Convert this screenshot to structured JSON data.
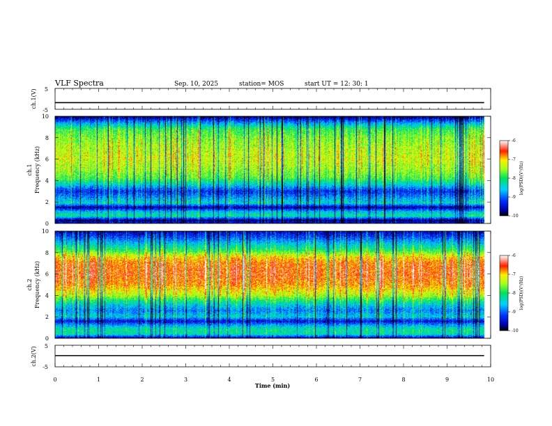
{
  "header": {
    "title": "VLF Spectra",
    "date": "Sep. 10, 2025",
    "station": "station= MOS",
    "start": "start  UT =   12: 30: 1"
  },
  "chart_data": [
    {
      "type": "line",
      "name": "ch1-voltage",
      "ylabel": "ch.1(V)",
      "ylim": [
        -5,
        5
      ],
      "yticks": [
        "5",
        "-5"
      ],
      "xlim": [
        0,
        10
      ],
      "series": [
        {
          "name": "ch.1",
          "constant_value": -1.8
        }
      ]
    },
    {
      "type": "heatmap",
      "name": "ch1-spectrogram",
      "ylabel": "ch.1\nFrequency (kHz)",
      "ylim": [
        0,
        10
      ],
      "yticks": [
        "0",
        "2",
        "4",
        "6",
        "8",
        "10"
      ],
      "xlim": [
        0,
        10
      ],
      "data_end_min": 9.85,
      "colorbar": {
        "label": "log(PSD)(V²/Hz)",
        "range": [
          -10,
          -6
        ],
        "ticks": [
          "-6",
          "-7",
          "-8",
          "-9",
          "-10"
        ]
      },
      "profile": [
        {
          "f": 0,
          "v": -9.4
        },
        {
          "f": 0.3,
          "v": -9.8
        },
        {
          "f": 0.7,
          "v": -8.2
        },
        {
          "f": 1.1,
          "v": -8.6
        },
        {
          "f": 1.5,
          "v": -9.7
        },
        {
          "f": 1.9,
          "v": -8.4
        },
        {
          "f": 2.4,
          "v": -8.8
        },
        {
          "f": 3.0,
          "v": -9.3
        },
        {
          "f": 3.6,
          "v": -8.5
        },
        {
          "f": 4.2,
          "v": -7.8
        },
        {
          "f": 5.0,
          "v": -7.5
        },
        {
          "f": 6.0,
          "v": -7.3
        },
        {
          "f": 7.0,
          "v": -7.4
        },
        {
          "f": 8.0,
          "v": -7.6
        },
        {
          "f": 8.8,
          "v": -7.9
        },
        {
          "f": 9.4,
          "v": -8.8
        },
        {
          "f": 10.0,
          "v": -9.9
        }
      ]
    },
    {
      "type": "heatmap",
      "name": "ch2-spectrogram",
      "ylabel": "ch.2\nFrequency (kHz)",
      "ylim": [
        0,
        10
      ],
      "yticks": [
        "0",
        "2",
        "4",
        "6",
        "8",
        "10"
      ],
      "xlim": [
        0,
        10
      ],
      "data_end_min": 9.85,
      "colorbar": {
        "label": "log(PSD)(V²/Hz)",
        "range": [
          -10,
          -6
        ],
        "ticks": [
          "-6",
          "-7",
          "-8",
          "-9",
          "-10"
        ]
      },
      "profile": [
        {
          "f": 0,
          "v": -9.7
        },
        {
          "f": 0.4,
          "v": -8.3
        },
        {
          "f": 0.8,
          "v": -8.2
        },
        {
          "f": 1.2,
          "v": -8.7
        },
        {
          "f": 1.6,
          "v": -9.5
        },
        {
          "f": 2.0,
          "v": -8.5
        },
        {
          "f": 2.6,
          "v": -8.9
        },
        {
          "f": 3.2,
          "v": -8.4
        },
        {
          "f": 4.0,
          "v": -7.4
        },
        {
          "f": 5.0,
          "v": -6.8
        },
        {
          "f": 6.0,
          "v": -6.6
        },
        {
          "f": 7.0,
          "v": -6.7
        },
        {
          "f": 7.6,
          "v": -7.1
        },
        {
          "f": 8.2,
          "v": -7.9
        },
        {
          "f": 8.8,
          "v": -8.5
        },
        {
          "f": 9.4,
          "v": -9.1
        },
        {
          "f": 10.0,
          "v": -9.6
        }
      ]
    },
    {
      "type": "line",
      "name": "ch2-voltage",
      "ylabel": "ch.2(V)",
      "ylim": [
        -5,
        5
      ],
      "yticks": [
        "5",
        "-5"
      ],
      "xlim": [
        0,
        10
      ],
      "series": [
        {
          "name": "ch.2",
          "constant_value": 0.2
        }
      ]
    }
  ],
  "x_axis": {
    "label": "Time (min)",
    "range": [
      0,
      10
    ],
    "ticks": [
      "0",
      "1",
      "2",
      "3",
      "4",
      "5",
      "6",
      "7",
      "8",
      "9",
      "10"
    ]
  }
}
